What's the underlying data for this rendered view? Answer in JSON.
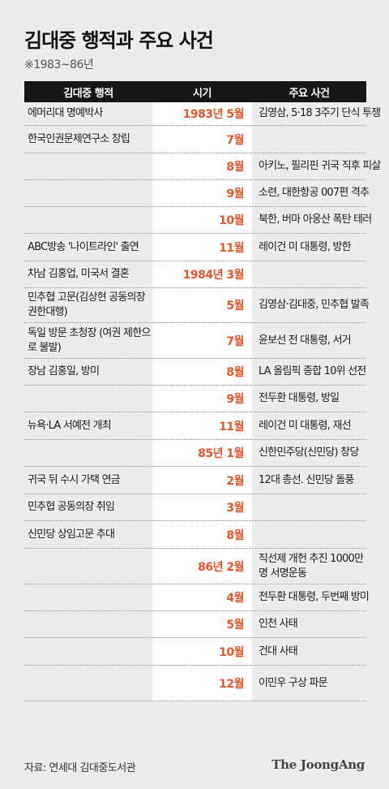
{
  "title": "김대중 행적과 주요 사건",
  "subtitle": "※1983~86년",
  "headers": {
    "col1": "김대중 행적",
    "col2": "시기",
    "col3": "주요 사건"
  },
  "colors": {
    "accent": "#e8572b",
    "header_bg": "#161616",
    "background": "#ececec"
  },
  "rows": [
    {
      "act": "에머리대 명예박사",
      "date": "1983년 5월",
      "event": "김영삼, 5·18 3주기 단식 투쟁"
    },
    {
      "act": "한국인권문제연구소 창립",
      "date": "7월",
      "event": ""
    },
    {
      "act": "",
      "date": "8월",
      "event": "아키노, 필리핀 귀국 직후 피살"
    },
    {
      "act": "",
      "date": "9월",
      "event": "소련, 대한항공 007편 격추"
    },
    {
      "act": "",
      "date": "10월",
      "event": "북한, 버마 아웅산 폭탄 테러"
    },
    {
      "act": "ABC방송 '나이트라인' 출연",
      "date": "11월",
      "event": "레이건 미 대통령, 방한"
    },
    {
      "act": "차남 김홍업, 미국서 결혼",
      "date": "1984년 3월",
      "event": ""
    },
    {
      "act": "민추협 고문(김상현 공동의장 권한대행)",
      "date": "5월",
      "event": "김영삼·김대중, 민추협 발족"
    },
    {
      "act": "독일 방문 초청장 (여권 제한으로 불발)",
      "date": "7월",
      "event": "윤보선 전 대통령, 서거"
    },
    {
      "act": "장남 김홍일, 방미",
      "date": "8월",
      "event": "LA 올림픽 종합 10위 선전"
    },
    {
      "act": "",
      "date": "9월",
      "event": "전두환 대통령, 방일"
    },
    {
      "act": "뉴욕·LA 서예전 개최",
      "date": "11월",
      "event": "레이건 미 대통령, 재선"
    },
    {
      "act": "",
      "date": "85년 1월",
      "event": "신한민주당(신민당) 창당"
    },
    {
      "act": "귀국 뒤 수시 가택 연금",
      "date": "2월",
      "event": "12대 총선. 신민당 돌풍"
    },
    {
      "act": "민추협 공동의장 취임",
      "date": "3월",
      "event": ""
    },
    {
      "act": "신민당 상임고문 추대",
      "date": "8월",
      "event": ""
    },
    {
      "act": "",
      "date": "86년 2월",
      "event": "직선제 개헌 추진 1000만명 서명운동"
    },
    {
      "act": "",
      "date": "4월",
      "event": "전두환 대통령, 두번째 방미"
    },
    {
      "act": "",
      "date": "5월",
      "event": "인천 사태"
    },
    {
      "act": "",
      "date": "10월",
      "event": "건대 사태"
    },
    {
      "act": "",
      "date": "12월",
      "event": "이민우 구상 파문"
    }
  ],
  "footer": {
    "source": "자료: 연세대 김대중도서관",
    "logo": "The JoongAng"
  }
}
